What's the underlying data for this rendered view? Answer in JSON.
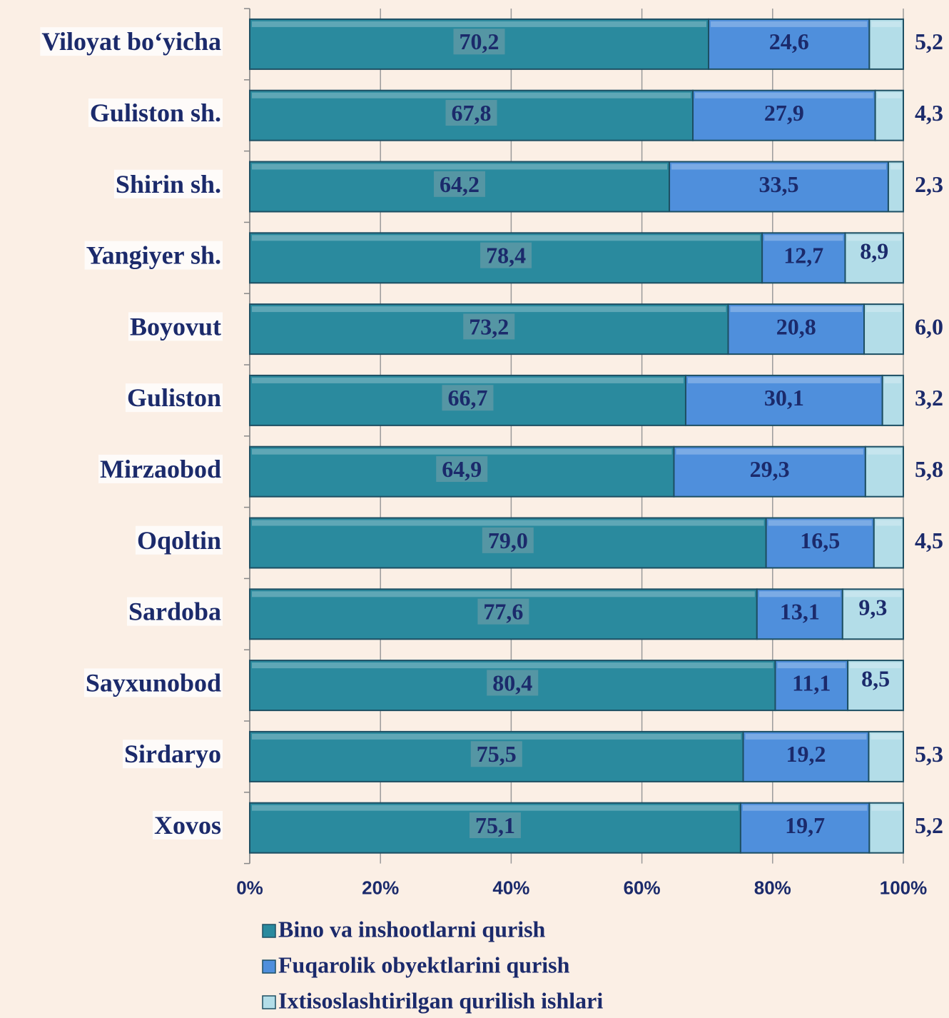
{
  "chart_data": {
    "type": "stacked-bar-horizontal",
    "categories": [
      "Viloyat bo‘yicha",
      "Guliston sh.",
      "Shirin sh.",
      "Yangiyer sh.",
      "Boyovut",
      "Guliston",
      "Mirzaobod",
      "Oqoltin",
      "Sardoba",
      "Sayxunobod",
      "Sirdaryo",
      "Xovos"
    ],
    "series": [
      {
        "name": "Bino va inshootlarni qurish",
        "color": "#2a8a9e",
        "values": [
          70.2,
          67.8,
          64.2,
          78.4,
          73.2,
          66.7,
          64.9,
          79.0,
          77.6,
          80.4,
          75.5,
          75.1
        ],
        "value_labels": [
          "70,2",
          "67,8",
          "64,2",
          "78,4",
          "73,2",
          "66,7",
          "64,9",
          "79,0",
          "77,6",
          "80,4",
          "75,5",
          "75,1"
        ]
      },
      {
        "name": "Fuqarolik obyektlarini qurish",
        "color": "#4f8fdc",
        "values": [
          24.6,
          27.9,
          33.5,
          12.7,
          20.8,
          30.1,
          29.3,
          16.5,
          13.1,
          11.1,
          19.2,
          19.7
        ],
        "value_labels": [
          "24,6",
          "27,9",
          "33,5",
          "12,7",
          "20,8",
          "30,1",
          "29,3",
          "16,5",
          "13,1",
          "11,1",
          "19,2",
          "19,7"
        ]
      },
      {
        "name": "Ixtisoslashtirilgan qurilish ishlari",
        "color": "#b3dde8",
        "values": [
          5.2,
          4.3,
          2.3,
          8.9,
          6.0,
          3.2,
          5.8,
          4.5,
          9.3,
          8.5,
          5.3,
          5.2
        ],
        "value_labels": [
          "5,2",
          "4,3",
          "2,3",
          "8,9",
          "6,0",
          "3,2",
          "5,8",
          "4,5",
          "9,3",
          "8,5",
          "5,3",
          "5,2"
        ]
      }
    ],
    "xlim": [
      0,
      100
    ],
    "xticks": [
      {
        "value": 0,
        "label": "0%"
      },
      {
        "value": 20,
        "label": "20%"
      },
      {
        "value": 40,
        "label": "40%"
      },
      {
        "value": 60,
        "label": "60%"
      },
      {
        "value": 80,
        "label": "80%"
      },
      {
        "value": 100,
        "label": "100%"
      }
    ],
    "grid": true
  }
}
